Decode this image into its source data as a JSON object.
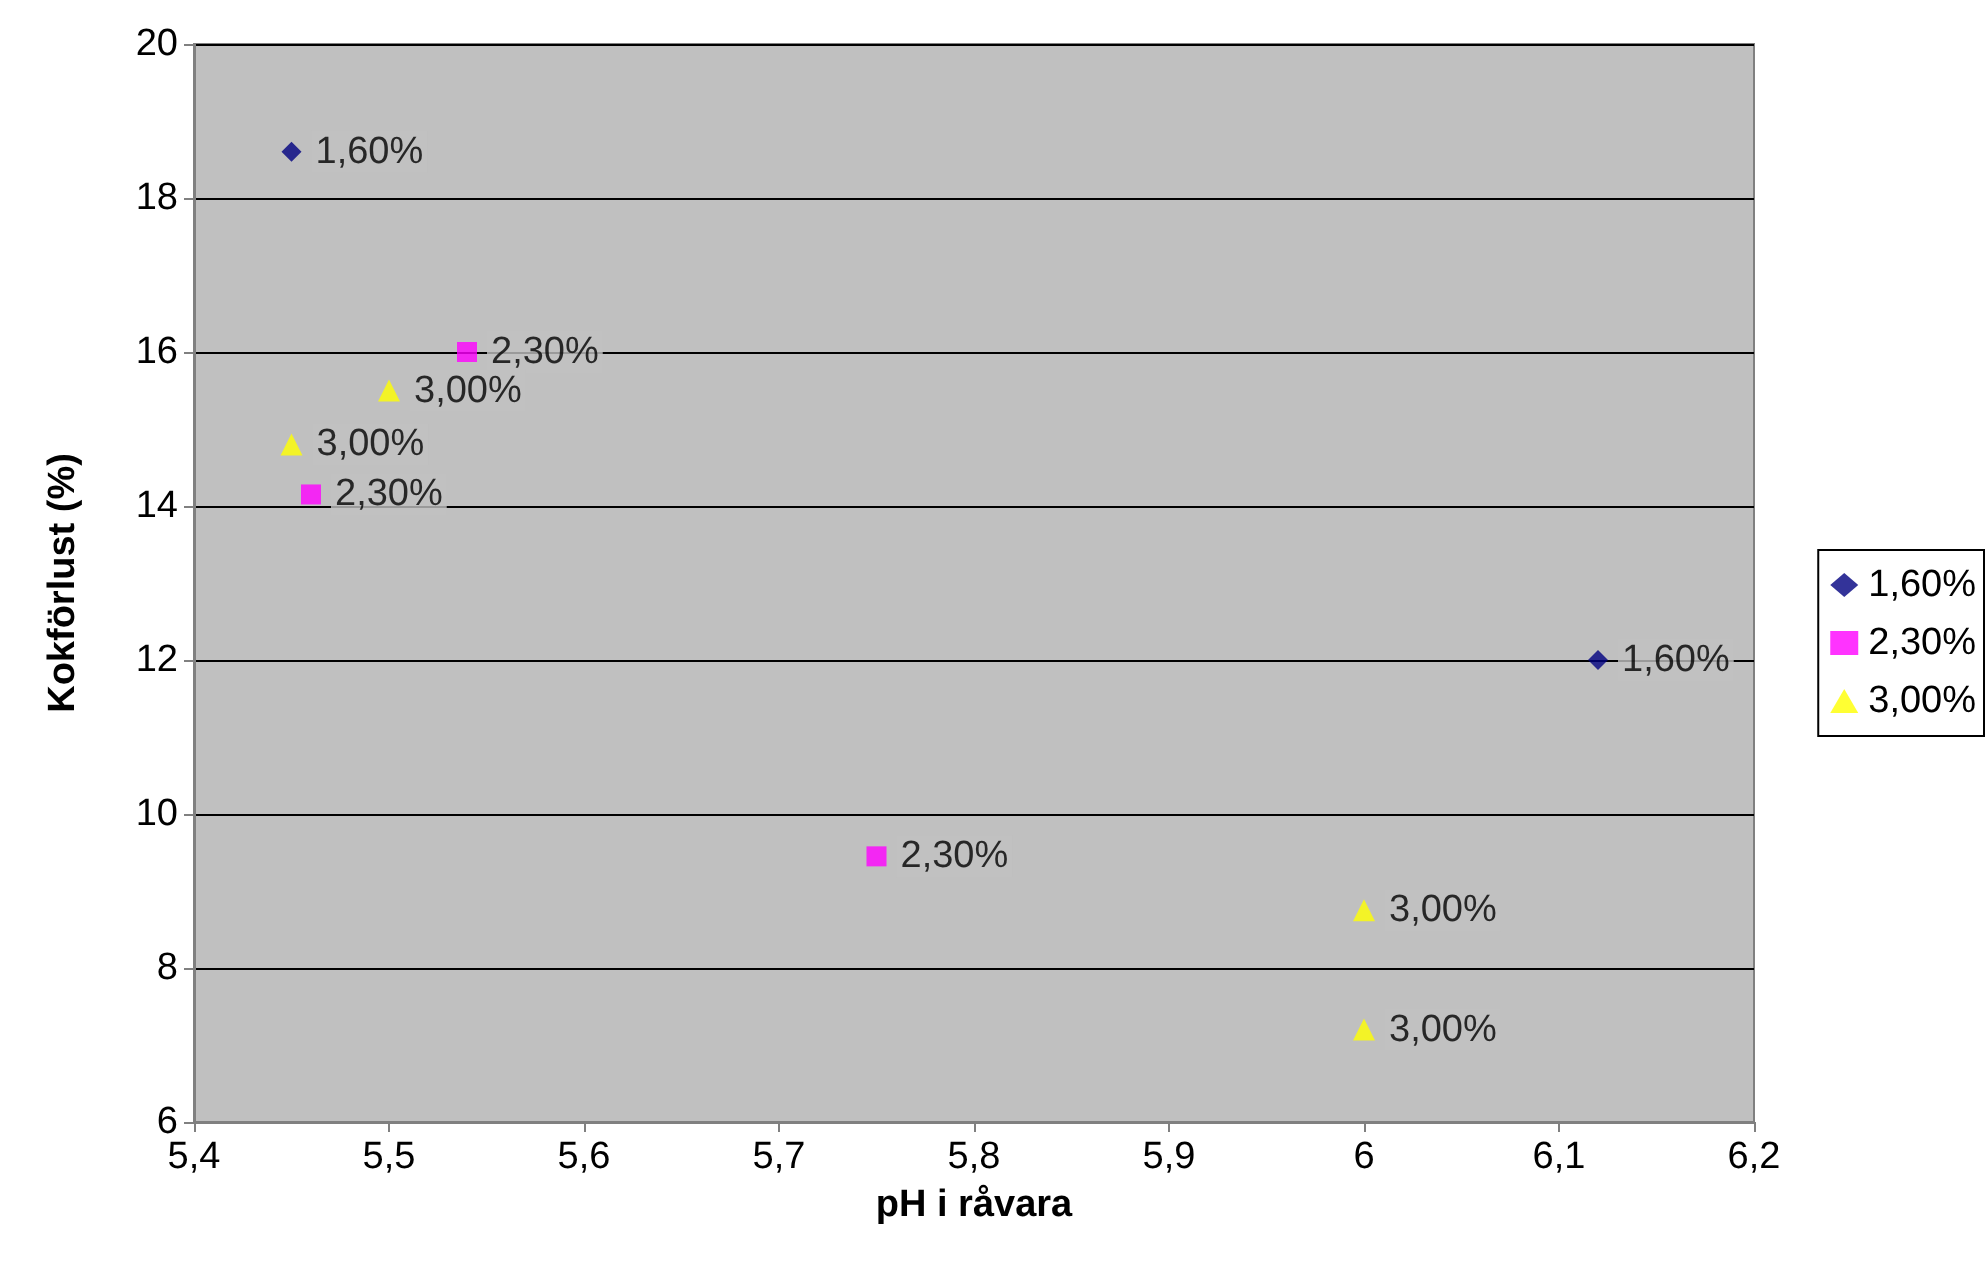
{
  "chart_data": {
    "type": "scatter",
    "xlabel": "pH i råvara",
    "ylabel": "Kokförlust (%)",
    "xlim": [
      5.4,
      6.2
    ],
    "xticks": [
      {
        "value": 5.4,
        "label": "5,4"
      },
      {
        "value": 5.5,
        "label": "5,5"
      },
      {
        "value": 5.6,
        "label": "5,6"
      },
      {
        "value": 5.7,
        "label": "5,7"
      },
      {
        "value": 5.8,
        "label": "5,8"
      },
      {
        "value": 5.9,
        "label": "5,9"
      },
      {
        "value": 6,
        "label": "6"
      },
      {
        "value": 6.1,
        "label": "6,1"
      },
      {
        "value": 6.2,
        "label": "6,2"
      }
    ],
    "ylim": [
      6,
      20
    ],
    "yticks": [
      6,
      8,
      10,
      12,
      14,
      16,
      18,
      20
    ],
    "grid": "y",
    "legend": "right",
    "series": [
      {
        "name": "1,60%",
        "color": "#000080",
        "marker": "diamond",
        "x": [
          5.45,
          6.12
        ],
        "values": [
          18.6,
          12.0
        ]
      },
      {
        "name": "2,30%",
        "color": "#ff00ff",
        "marker": "square",
        "x": [
          5.54,
          5.46,
          5.75
        ],
        "values": [
          16.0,
          14.15,
          9.45
        ]
      },
      {
        "name": "3,00%",
        "color": "#ffff00",
        "marker": "triangle",
        "x": [
          5.5,
          5.45,
          6.0,
          6.0
        ],
        "values": [
          15.5,
          14.8,
          8.75,
          7.2
        ]
      }
    ]
  }
}
